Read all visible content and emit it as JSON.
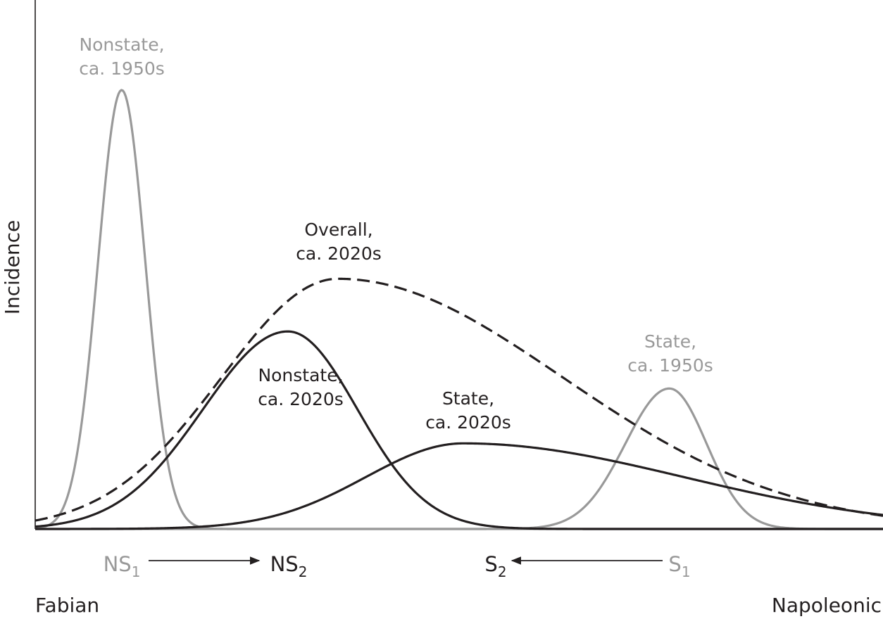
{
  "chart_data": {
    "type": "line",
    "ylabel": "Incidence",
    "xlabel_left": "Fabian",
    "xlabel_right": "Napoleonic",
    "colors": {
      "gray": "#999999",
      "dark": "#231f20"
    },
    "curves": [
      {
        "id": "nonstate-1950s",
        "label_lines": [
          "Nonstate,",
          "ca. 1950s"
        ],
        "color": "gray",
        "style": "solid",
        "mean": 0.102,
        "peak": 1.0,
        "sd_left": 0.028,
        "sd_right": 0.028
      },
      {
        "id": "state-1950s",
        "label_lines": [
          "State,",
          "ca. 1950s"
        ],
        "color": "gray",
        "style": "solid",
        "mean": 0.748,
        "peak": 0.32,
        "sd_left": 0.052,
        "sd_right": 0.044
      },
      {
        "id": "nonstate-2020s",
        "label_lines": [
          "Nonstate,",
          "ca. 2020s"
        ],
        "color": "dark",
        "style": "solid",
        "mean": 0.298,
        "peak": 0.45,
        "sd_left": 0.1,
        "sd_right": 0.082
      },
      {
        "id": "state-2020s",
        "label_lines": [
          "State,",
          "ca. 2020s"
        ],
        "color": "dark",
        "style": "solid",
        "mean": 0.505,
        "peak": 0.195,
        "sd_left": 0.115,
        "sd_right": 0.26
      },
      {
        "id": "overall-2020s",
        "label_lines": [
          "Overall,",
          "ca. 2020s"
        ],
        "color": "dark",
        "style": "dashed",
        "mean": 0.357,
        "peak": 0.57,
        "sd_left": 0.137,
        "sd_right": 0.265
      }
    ],
    "markers": [
      {
        "id": "ns1",
        "base": "NS",
        "sub": "1",
        "color": "gray"
      },
      {
        "id": "ns2",
        "base": "NS",
        "sub": "2",
        "color": "dark"
      },
      {
        "id": "s2",
        "base": "S",
        "sub": "2",
        "color": "dark"
      },
      {
        "id": "s1",
        "base": "S",
        "sub": "1",
        "color": "gray"
      }
    ],
    "arrows": [
      {
        "from": "ns1",
        "to": "ns2"
      },
      {
        "from": "s1",
        "to": "s2"
      }
    ]
  }
}
